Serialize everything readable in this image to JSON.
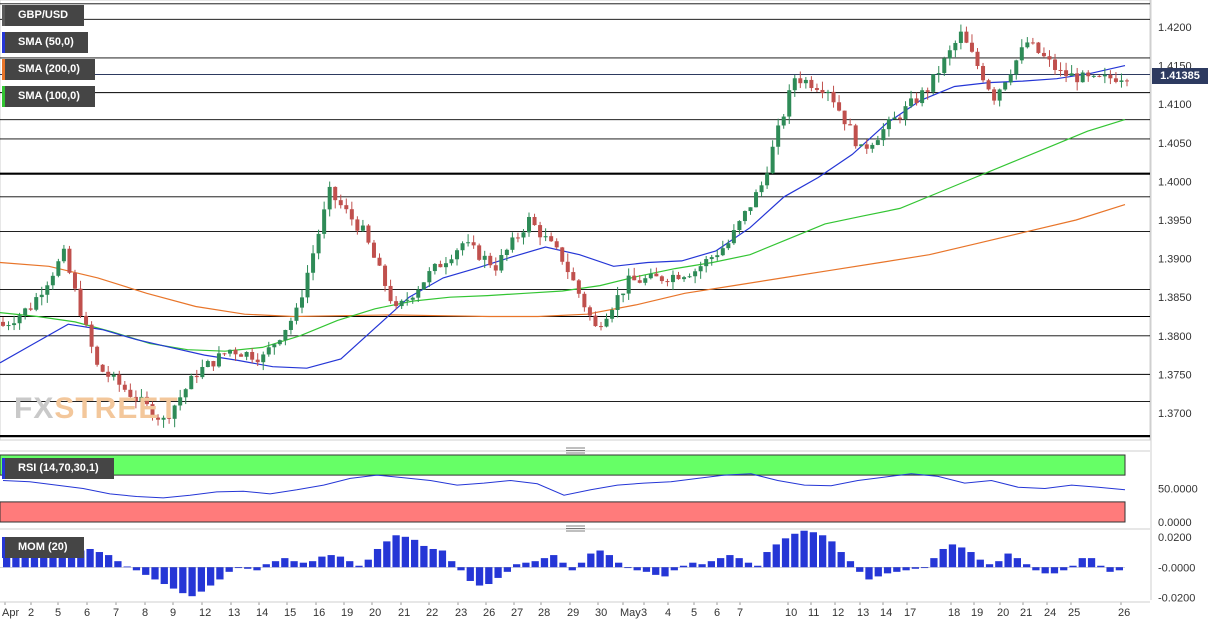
{
  "app": {
    "watermark_fx": "FX",
    "watermark_street": "STREET"
  },
  "legend": {
    "symbol": "GBP/USD",
    "sma50": "SMA (50,0)",
    "sma200": "SMA (200,0)",
    "sma100": "SMA (100,0)",
    "rsi": "RSI (14,70,30,1)",
    "mom": "MOM (20)"
  },
  "colors": {
    "bull": "#2e8b57",
    "bear": "#c0504d",
    "sma50": "#2536d6",
    "sma100": "#33c533",
    "sma200": "#e8752a",
    "rsi_line": "#2536d6",
    "rsi_overbought": "#66ff66",
    "rsi_oversold": "#ff7b7b",
    "mom_bar": "#2536d6",
    "price_badge": "#2d3a60"
  },
  "chart_data": {
    "type": "candlestick",
    "title": "GBP/USD",
    "current_price": "1.41385",
    "current_price_value": 1.41385,
    "ylim": [
      1.3665,
      1.4235
    ],
    "yticks": [
      "1.4200",
      "1.4150",
      "1.4100",
      "1.4050",
      "1.4000",
      "1.3950",
      "1.3900",
      "1.3850",
      "1.3800",
      "1.3750",
      "1.3700"
    ],
    "ytick_values": [
      1.42,
      1.415,
      1.41,
      1.405,
      1.4,
      1.395,
      1.39,
      1.385,
      1.38,
      1.375,
      1.37
    ],
    "horizontal_levels": [
      1.423,
      1.421,
      1.416,
      1.4115,
      1.408,
      1.4055,
      1.401,
      1.398,
      1.3935,
      1.386,
      1.3825,
      1.38,
      1.375,
      1.3715,
      1.367
    ],
    "thick_levels": [
      1.401,
      1.367
    ],
    "x_labels": [
      "Apr",
      "2",
      "5",
      "6",
      "7",
      "8",
      "9",
      "12",
      "13",
      "14",
      "15",
      "16",
      "19",
      "20",
      "21",
      "22",
      "23",
      "26",
      "27",
      "28",
      "29",
      "30",
      "May",
      "3",
      "4",
      "5",
      "6",
      "7",
      "10",
      "11",
      "12",
      "13",
      "14",
      "17",
      "18",
      "19",
      "20",
      "21",
      "24",
      "25",
      "26"
    ],
    "daily_closes": [
      1.3838,
      1.3905,
      1.376,
      1.3725,
      1.369,
      1.3752,
      1.3782,
      1.3772,
      1.383,
      1.3985,
      1.3935,
      1.3832,
      1.388,
      1.392,
      1.389,
      1.395,
      1.39,
      1.381,
      1.387,
      1.3875,
      1.3885,
      1.392,
      1.3995,
      1.4135,
      1.412,
      1.404,
      1.408,
      1.412,
      1.419,
      1.411,
      1.418,
      1.414,
      1.413,
      1.4138
    ],
    "sma50": [
      1.3765,
      1.379,
      1.3815,
      1.3808,
      1.3795,
      1.3785,
      1.3775,
      1.3768,
      1.376,
      1.3758,
      1.377,
      1.381,
      1.385,
      1.3875,
      1.3888,
      1.3902,
      1.3915,
      1.3905,
      1.389,
      1.3895,
      1.3897,
      1.391,
      1.394,
      1.398,
      1.4005,
      1.4035,
      1.4075,
      1.4105,
      1.4123,
      1.4128,
      1.413,
      1.4133,
      1.414,
      1.415
    ],
    "sma100": [
      1.383,
      1.3825,
      1.3818,
      1.3805,
      1.379,
      1.3782,
      1.378,
      1.3785,
      1.38,
      1.382,
      1.3835,
      1.3845,
      1.385,
      1.3852,
      1.3855,
      1.3858,
      1.3865,
      1.3877,
      1.3887,
      1.3895,
      1.3905,
      1.3925,
      1.3945,
      1.3955,
      1.3965,
      1.3985,
      1.4005,
      1.4025,
      1.4045,
      1.4065,
      1.408
    ],
    "sma200": [
      1.3895,
      1.389,
      1.3875,
      1.3855,
      1.3838,
      1.3828,
      1.3825,
      1.3826,
      1.3827,
      1.3826,
      1.3825,
      1.3825,
      1.3828,
      1.384,
      1.3855,
      1.3865,
      1.3875,
      1.3885,
      1.3895,
      1.3905,
      1.392,
      1.3935,
      1.395,
      1.397
    ],
    "rsi": {
      "ylim": [
        0,
        100
      ],
      "yticks": [
        "50.0000",
        "0.0000"
      ],
      "ytick_values": [
        50,
        0
      ],
      "overbought": 70,
      "oversold": 30,
      "values": [
        62,
        60,
        55,
        50,
        42,
        38,
        36,
        40,
        45,
        46,
        42,
        48,
        55,
        65,
        70,
        66,
        62,
        55,
        58,
        62,
        57,
        40,
        48,
        55,
        58,
        60,
        65,
        70,
        72,
        62,
        55,
        54,
        62,
        67,
        72,
        68,
        58,
        62,
        52,
        50,
        55,
        52,
        48
      ]
    },
    "mom": {
      "ylim": [
        -0.0215,
        0.0225
      ],
      "yticks": [
        "0.0200",
        "-0.0000",
        "-0.0200"
      ],
      "ytick_values": [
        0.02,
        0.0,
        -0.02
      ],
      "values": [
        0.008,
        0.009,
        0.01,
        0.009,
        0.011,
        0.012,
        0.011,
        0.01,
        0.011,
        0.012,
        0.01,
        0.008,
        0.004,
        0.0005,
        -0.002,
        -0.005,
        -0.008,
        -0.011,
        -0.014,
        -0.017,
        -0.019,
        -0.016,
        -0.012,
        -0.008,
        -0.003,
        0.0,
        -0.001,
        -0.002,
        0.002,
        0.004,
        0.006,
        0.004,
        0.003,
        0.004,
        0.007,
        0.008,
        0.007,
        0.004,
        0.001,
        0.005,
        0.012,
        0.017,
        0.021,
        0.02,
        0.018,
        0.014,
        0.012,
        0.011,
        0.004,
        -0.002,
        -0.009,
        -0.012,
        -0.011,
        -0.007,
        -0.003,
        0.002,
        0.003,
        0.004,
        0.006,
        0.008,
        0.003,
        -0.002,
        0.003,
        0.009,
        0.011,
        0.008,
        0.003,
        0.0,
        -0.002,
        -0.003,
        -0.005,
        -0.006,
        -0.002,
        0.001,
        0.003,
        0.002,
        0.004,
        0.006,
        0.008,
        0.006,
        0.003,
        0.001,
        0.01,
        0.015,
        0.019,
        0.022,
        0.024,
        0.023,
        0.021,
        0.017,
        0.01,
        0.004,
        -0.003,
        -0.008,
        -0.006,
        -0.004,
        -0.003,
        -0.002,
        -0.001,
        0.0,
        0.006,
        0.012,
        0.015,
        0.013,
        0.01,
        0.005,
        0.002,
        0.004,
        0.009,
        0.006,
        0.002,
        -0.002,
        -0.004,
        -0.004,
        -0.002,
        0.001,
        0.006,
        0.006,
        0.001,
        -0.003,
        -0.002
      ]
    }
  }
}
